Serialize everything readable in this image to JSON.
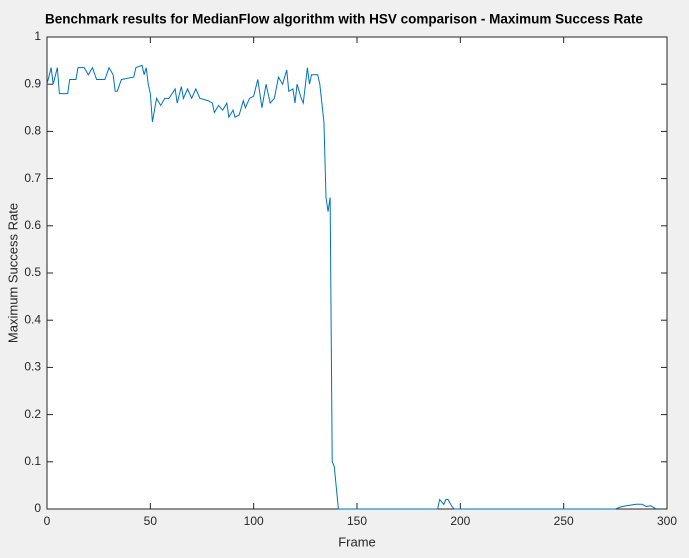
{
  "chart_data": {
    "type": "line",
    "title": "Benchmark results for MedianFlow algorithm with HSV comparison - Maximum Success Rate",
    "x_label": "Frame",
    "y_label": "Maximum Success Rate",
    "x": [
      0,
      2,
      3,
      5,
      6,
      10,
      11,
      14,
      15,
      18,
      20,
      22,
      24,
      28,
      30,
      32,
      33,
      34,
      36,
      42,
      43,
      46,
      47,
      48,
      49,
      50,
      51,
      53,
      55,
      57,
      59,
      62,
      63,
      65,
      66,
      68,
      70,
      72,
      74,
      78,
      80,
      81,
      83,
      85,
      87,
      88,
      90,
      91,
      93,
      95,
      96,
      98,
      100,
      102,
      104,
      106,
      108,
      110,
      112,
      114,
      116,
      117,
      119,
      120,
      121,
      123,
      124,
      126,
      127,
      128,
      131,
      132,
      134,
      135,
      136,
      137,
      138,
      139,
      141,
      189,
      190,
      191,
      192,
      193,
      194,
      196,
      197,
      275,
      278,
      282,
      285,
      288,
      290,
      292,
      294,
      295
    ],
    "series": [
      {
        "name": "Maximum Success Rate",
        "color": "#0072bd",
        "values": [
          0.9,
          0.935,
          0.9,
          0.935,
          0.88,
          0.88,
          0.91,
          0.91,
          0.935,
          0.935,
          0.92,
          0.935,
          0.91,
          0.91,
          0.935,
          0.92,
          0.885,
          0.885,
          0.91,
          0.915,
          0.935,
          0.94,
          0.92,
          0.935,
          0.9,
          0.88,
          0.82,
          0.87,
          0.855,
          0.87,
          0.87,
          0.89,
          0.86,
          0.895,
          0.87,
          0.89,
          0.87,
          0.89,
          0.87,
          0.865,
          0.86,
          0.84,
          0.855,
          0.845,
          0.86,
          0.83,
          0.845,
          0.83,
          0.835,
          0.865,
          0.85,
          0.87,
          0.875,
          0.91,
          0.85,
          0.9,
          0.86,
          0.87,
          0.915,
          0.9,
          0.93,
          0.885,
          0.89,
          0.86,
          0.9,
          0.87,
          0.86,
          0.935,
          0.9,
          0.92,
          0.92,
          0.9,
          0.82,
          0.66,
          0.63,
          0.66,
          0.1,
          0.09,
          0,
          0,
          0.02,
          0.015,
          0.01,
          0.02,
          0.02,
          0.005,
          0,
          0,
          0.005,
          0.008,
          0.01,
          0.01,
          0.005,
          0.007,
          0.002,
          0
        ]
      }
    ],
    "xlim": [
      0,
      300
    ],
    "xticks": [
      0,
      50,
      100,
      150,
      200,
      250,
      300
    ],
    "ylim": [
      0,
      1
    ],
    "yticks": [
      0,
      0.1,
      0.2,
      0.3,
      0.4,
      0.5,
      0.6,
      0.7,
      0.8,
      0.9,
      1
    ]
  }
}
